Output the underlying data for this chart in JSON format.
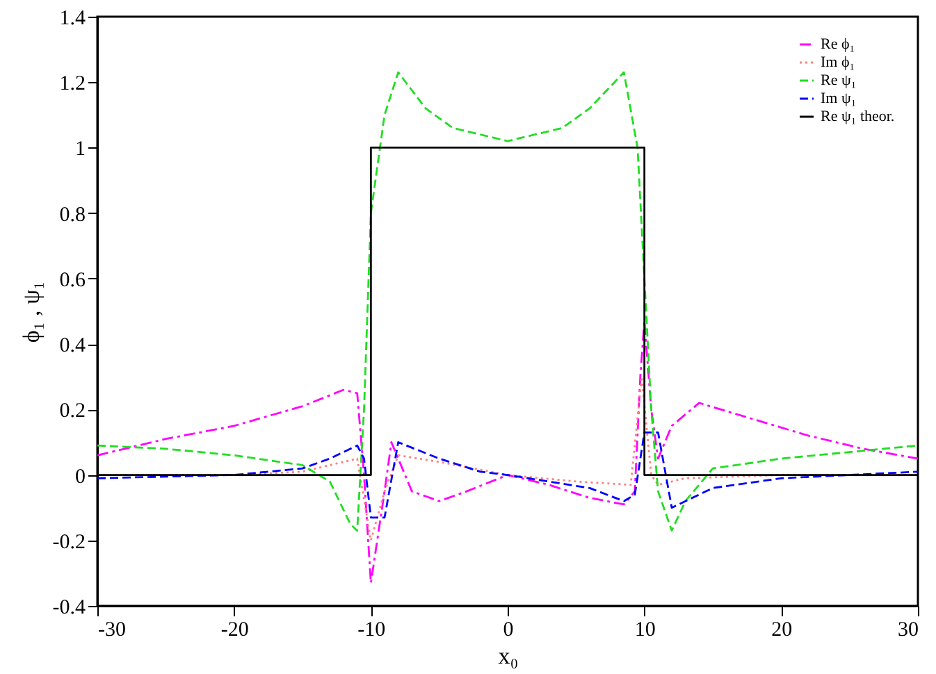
{
  "chart_data": {
    "type": "line",
    "xlabel": "x₀",
    "ylabel": "ϕ₁ , ψ₁",
    "xlim": [
      -30,
      30
    ],
    "xticks": [
      -30,
      -20,
      -10,
      0,
      10,
      20,
      30
    ],
    "ylim": [
      -0.4,
      1.4
    ],
    "yticks": [
      -0.4,
      -0.2,
      0,
      0.2,
      0.4,
      0.6,
      0.8,
      1,
      1.2,
      1.4
    ],
    "legend": "top right",
    "series": [
      {
        "name": "Re ϕ₁",
        "color": "#ff00ff",
        "line_style": "dashdot",
        "x": [
          -30,
          -25,
          -20,
          -15,
          -12,
          -11,
          -10.5,
          -10,
          -9,
          -8.5,
          -8,
          -7,
          -5,
          -3,
          0,
          3,
          6,
          8.5,
          9.3,
          9.7,
          10,
          10.5,
          11,
          12,
          14,
          18,
          22,
          26,
          30
        ],
        "values": [
          0.06,
          0.11,
          0.15,
          0.21,
          0.26,
          0.25,
          0.0,
          -0.33,
          -0.05,
          0.1,
          0.05,
          -0.05,
          -0.08,
          -0.05,
          0,
          -0.03,
          -0.07,
          -0.09,
          -0.05,
          0.3,
          0.47,
          0.2,
          0.05,
          0.15,
          0.22,
          0.17,
          0.12,
          0.08,
          0.05
        ]
      },
      {
        "name": "Im ϕ₁",
        "color": "#ff7f7f",
        "line_style": "dotted",
        "x": [
          -30,
          -20,
          -15,
          -11,
          -10,
          -9,
          -8,
          -5,
          0,
          5,
          9,
          9.8,
          10.5,
          11,
          13,
          20,
          30
        ],
        "values": [
          0,
          0,
          0.01,
          0.05,
          -0.2,
          -0.05,
          0.06,
          0.04,
          0,
          -0.02,
          -0.03,
          0.3,
          0,
          -0.03,
          -0.01,
          0,
          0
        ]
      },
      {
        "name": "Re ψ₁",
        "color": "#22dd22",
        "line_style": "dashed",
        "x": [
          -30,
          -25,
          -20,
          -15,
          -13,
          -11.5,
          -11,
          -10.5,
          -10,
          -9,
          -8,
          -6,
          -4,
          0,
          4,
          6,
          8.5,
          9.5,
          10,
          10.5,
          11,
          12,
          13,
          15,
          20,
          25,
          30
        ],
        "values": [
          0.09,
          0.08,
          0.06,
          0.03,
          -0.02,
          -0.15,
          -0.17,
          0.2,
          0.8,
          1.1,
          1.23,
          1.12,
          1.06,
          1.02,
          1.06,
          1.12,
          1.23,
          1.0,
          0.6,
          0.2,
          -0.05,
          -0.17,
          -0.08,
          0.02,
          0.05,
          0.07,
          0.09
        ]
      },
      {
        "name": "Im ψ₁",
        "color": "#0000ff",
        "line_style": "dashed",
        "x": [
          -30,
          -20,
          -15,
          -13,
          -11,
          -10.5,
          -10,
          -9,
          -8,
          -5,
          -2,
          0,
          3,
          6,
          8.5,
          9.3,
          10,
          11,
          12,
          15,
          20,
          30
        ],
        "values": [
          -0.01,
          0,
          0.02,
          0.05,
          0.09,
          0.05,
          -0.13,
          -0.13,
          0.1,
          0.05,
          0.01,
          0,
          -0.02,
          -0.04,
          -0.08,
          -0.06,
          0.13,
          0.13,
          -0.1,
          -0.04,
          -0.01,
          0.01
        ]
      },
      {
        "name": "Re ψ₁  theor.",
        "color": "#000000",
        "line_style": "solid",
        "x": [
          -30,
          -10,
          -10,
          10,
          10,
          30
        ],
        "values": [
          0,
          0,
          1,
          1,
          0,
          0
        ]
      }
    ]
  }
}
